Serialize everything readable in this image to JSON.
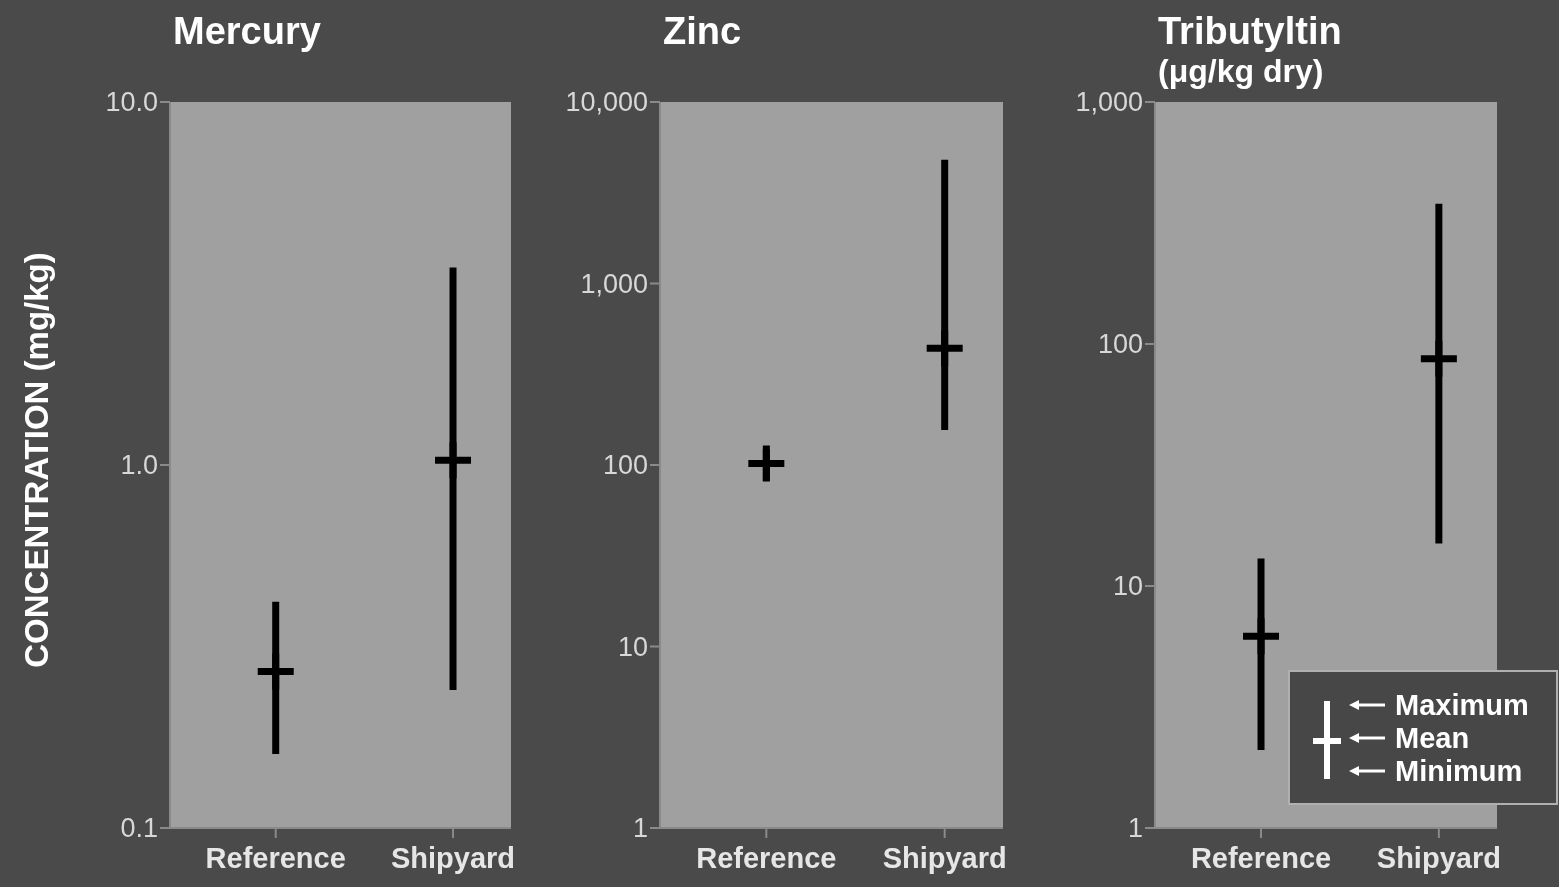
{
  "chart_data": [
    {
      "type": "scatter",
      "marker": "cross",
      "title": "Mercury",
      "ylabel": "CONCENTRATION (mg/kg)",
      "categories": [
        "Reference",
        "Shipyard"
      ],
      "log": true,
      "ylim": [
        0.1,
        10
      ],
      "yticks": [
        {
          "value": 0.1,
          "label": "0.1"
        },
        {
          "value": 1,
          "label": "1.0"
        },
        {
          "value": 10,
          "label": "10.0"
        }
      ],
      "series": [
        {
          "color": "#000000",
          "values": [
            0.27,
            1.03
          ],
          "errors": [
            [
              0.16,
              0.42
            ],
            [
              0.24,
              3.5
            ]
          ]
        }
      ]
    },
    {
      "type": "scatter",
      "marker": "cross",
      "title": "Zinc",
      "categories": [
        "Reference",
        "Shipyard"
      ],
      "log": true,
      "ylim": [
        1,
        10000
      ],
      "yticks": [
        1,
        10,
        100,
        {
          "value": 1000,
          "label": "1,000"
        },
        {
          "value": 10000,
          "label": "10,000"
        }
      ],
      "series": [
        {
          "color": "#000000",
          "values": [
            102,
            440
          ],
          "errors": [
            [
              82,
              122
            ],
            [
              156,
              4800
            ]
          ]
        }
      ]
    },
    {
      "type": "scatter",
      "marker": "cross",
      "title": "Tributyltin",
      "subtitle": "(μg/kg dry)",
      "categories": [
        "Reference",
        "Shipyard"
      ],
      "log": true,
      "ylim": [
        1,
        1000
      ],
      "yticks": [
        1,
        10,
        100,
        {
          "value": 1000,
          "label": "1,000"
        }
      ],
      "series": [
        {
          "color": "#000000",
          "values": [
            6.2,
            87
          ],
          "errors": [
            [
              2.1,
              13
            ],
            [
              15,
              380
            ]
          ]
        }
      ],
      "annotations": [
        "Maximum",
        "Mean",
        "Minimum"
      ]
    }
  ]
}
